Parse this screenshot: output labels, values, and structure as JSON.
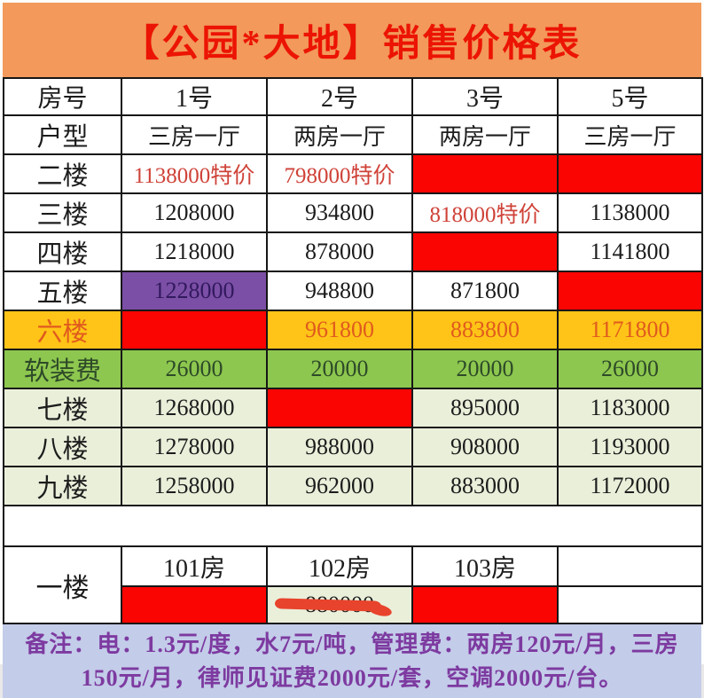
{
  "title": "【公园*大地】销售价格表",
  "colors": {
    "banner_bg": "#f2995b",
    "title_red": "#ec1404",
    "sold_red": "#fb0503",
    "special_price_text": "#cf4238",
    "premium_purple_bg": "#7b4fa6",
    "gold_bg": "#ffc417",
    "gold_text": "#e05a1e",
    "fee_green_bg": "#8dc74f",
    "upper_floor_bg": "#eaefda",
    "marker_red": "#e8432c",
    "note_bg": "#c3cce9",
    "note_text": "#7d3aa0"
  },
  "table": {
    "columns": [
      "房号",
      "1号",
      "2号",
      "3号",
      "5号"
    ],
    "unit_type_row": {
      "label": "户型",
      "cells": [
        {
          "text": "三房一厅",
          "style": "type"
        },
        {
          "text": "两房一厅",
          "style": "type"
        },
        {
          "text": "两房一厅",
          "style": "type"
        },
        {
          "text": "三房一厅",
          "style": "type"
        }
      ]
    },
    "rows": [
      {
        "label": "二楼",
        "label_style": "plain",
        "cells": [
          {
            "text": "1138000特价",
            "style": "special"
          },
          {
            "text": "798000特价",
            "style": "special"
          },
          {
            "text": "",
            "style": "sold"
          },
          {
            "text": "",
            "style": "sold"
          }
        ]
      },
      {
        "label": "三楼",
        "label_style": "plain",
        "cells": [
          {
            "text": "1208000",
            "style": "plain"
          },
          {
            "text": "934800",
            "style": "plain"
          },
          {
            "text": "818000特价",
            "style": "special"
          },
          {
            "text": "1138000",
            "style": "plain"
          }
        ]
      },
      {
        "label": "四楼",
        "label_style": "plain",
        "cells": [
          {
            "text": "1218000",
            "style": "plain"
          },
          {
            "text": "878000",
            "style": "plain"
          },
          {
            "text": "",
            "style": "sold"
          },
          {
            "text": "1141800",
            "style": "plain"
          }
        ]
      },
      {
        "label": "五楼",
        "label_style": "plain",
        "cells": [
          {
            "text": "1228000",
            "style": "purple"
          },
          {
            "text": "948800",
            "style": "plain"
          },
          {
            "text": "871800",
            "style": "plain"
          },
          {
            "text": "",
            "style": "sold"
          }
        ]
      },
      {
        "label": "六楼",
        "label_style": "gold",
        "cells": [
          {
            "text": "",
            "style": "sold"
          },
          {
            "text": "961800",
            "style": "gold"
          },
          {
            "text": "883800",
            "style": "gold"
          },
          {
            "text": "1171800",
            "style": "gold"
          }
        ]
      },
      {
        "label": "软装费",
        "label_style": "green",
        "cells": [
          {
            "text": "26000",
            "style": "green"
          },
          {
            "text": "20000",
            "style": "green"
          },
          {
            "text": "20000",
            "style": "green"
          },
          {
            "text": "26000",
            "style": "green"
          }
        ]
      },
      {
        "label": "七楼",
        "label_style": "pale",
        "cells": [
          {
            "text": "1268000",
            "style": "pale"
          },
          {
            "text": "",
            "style": "sold"
          },
          {
            "text": "895000",
            "style": "pale"
          },
          {
            "text": "1183000",
            "style": "pale"
          }
        ]
      },
      {
        "label": "八楼",
        "label_style": "pale",
        "cells": [
          {
            "text": "1278000",
            "style": "pale"
          },
          {
            "text": "988000",
            "style": "pale"
          },
          {
            "text": "908000",
            "style": "pale"
          },
          {
            "text": "1193000",
            "style": "pale"
          }
        ]
      },
      {
        "label": "九楼",
        "label_style": "pale",
        "cells": [
          {
            "text": "1258000",
            "style": "pale"
          },
          {
            "text": "962000",
            "style": "pale"
          },
          {
            "text": "883000",
            "style": "pale"
          },
          {
            "text": "1172000",
            "style": "pale"
          }
        ]
      }
    ]
  },
  "ground_floor": {
    "label": "一楼",
    "rooms": [
      "101房",
      "102房",
      "103房"
    ],
    "prices": [
      {
        "text": "",
        "style": "sold"
      },
      {
        "text": "880000",
        "style": "pale struck"
      },
      {
        "text": "",
        "style": "sold"
      },
      {
        "text": "",
        "style": "plain"
      }
    ]
  },
  "note": {
    "text": "备注：电：1.3元/度，水7元/吨，管理费：两房120元/月，三房150元/月，律师见证费2000元/套，空调2000元/台。"
  }
}
